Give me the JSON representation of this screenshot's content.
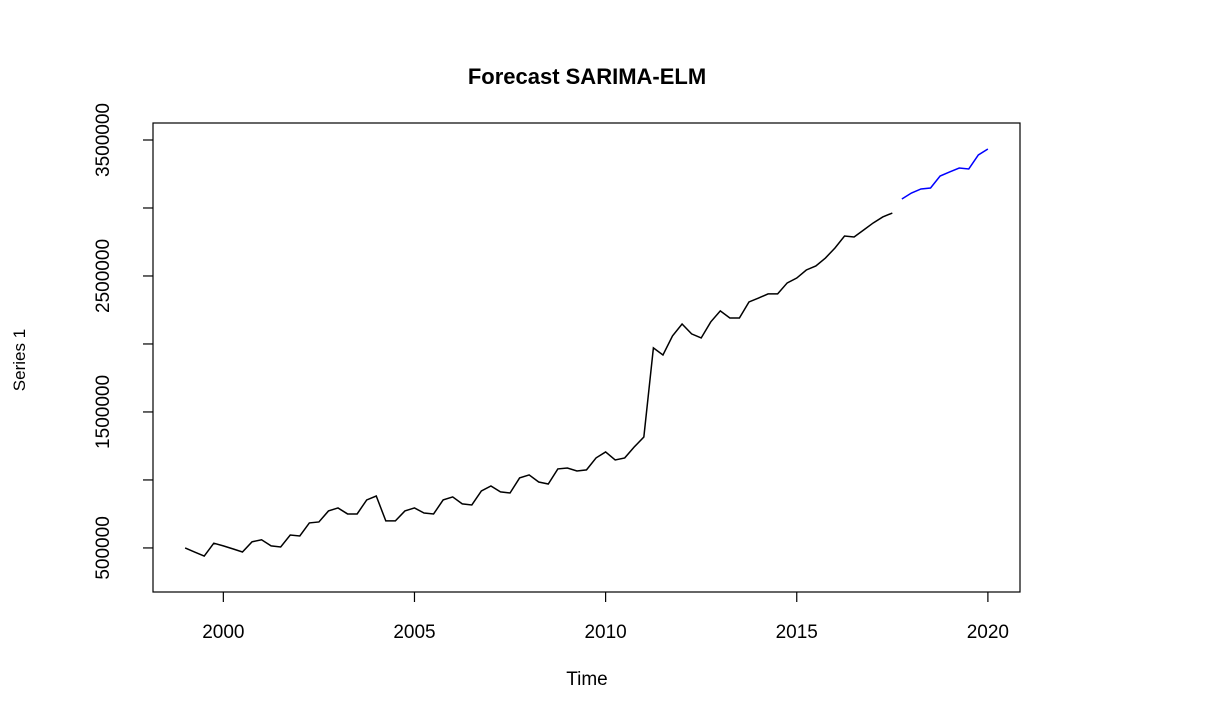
{
  "chart_data": {
    "type": "line",
    "title": "Forecast SARIMA-ELM",
    "xlabel": "Time",
    "ylabel": "Series 1",
    "xlim": [
      1998.16,
      2020.84
    ],
    "ylim": [
      176000,
      3625000
    ],
    "xticks": [
      2000,
      2005,
      2010,
      2015,
      2020
    ],
    "yticks": [
      500000,
      1000000,
      1500000,
      2000000,
      2500000,
      3000000,
      3500000
    ],
    "series": [
      {
        "color": "#000000",
        "x": [
          1999,
          1999.25,
          1999.5,
          1999.75,
          2000,
          2000.25,
          2000.5,
          2000.75,
          2001,
          2001.25,
          2001.5,
          2001.75,
          2002,
          2002.25,
          2002.5,
          2002.75,
          2003,
          2003.25,
          2003.5,
          2003.75,
          2004,
          2004.25,
          2004.5,
          2004.75,
          2005,
          2005.25,
          2005.5,
          2005.75,
          2006,
          2006.25,
          2006.5,
          2006.75,
          2007,
          2007.25,
          2007.5,
          2007.75,
          2008,
          2008.25,
          2008.5,
          2008.75,
          2009,
          2009.25,
          2009.5,
          2009.75,
          2010,
          2010.25,
          2010.5,
          2010.75,
          2011,
          2011.25,
          2011.5,
          2011.75,
          2012,
          2012.25,
          2012.5,
          2012.75,
          2013,
          2013.25,
          2013.5,
          2013.75,
          2014,
          2014.25,
          2014.5,
          2014.75,
          2015,
          2015.25,
          2015.5,
          2015.75,
          2016,
          2016.25,
          2016.5,
          2016.75,
          2017,
          2017.25,
          2017.5
        ],
        "values": [
          500000,
          470000,
          440000,
          535000,
          515000,
          493000,
          470000,
          545000,
          560000,
          515000,
          507000,
          595000,
          588000,
          684000,
          691000,
          772000,
          794000,
          750000,
          750000,
          853000,
          882000,
          699000,
          699000,
          772000,
          794000,
          757000,
          750000,
          853000,
          875000,
          824000,
          816000,
          919000,
          956000,
          912000,
          904000,
          1015000,
          1037000,
          985000,
          970000,
          1081000,
          1088000,
          1066000,
          1074000,
          1162000,
          1206000,
          1147000,
          1162000,
          1243000,
          1316000,
          1971000,
          1919000,
          2059000,
          2147000,
          2074000,
          2044000,
          2162000,
          2243000,
          2191000,
          2191000,
          2309000,
          2338000,
          2368000,
          2368000,
          2449000,
          2485000,
          2544000,
          2574000,
          2632000,
          2706000,
          2794000,
          2787000,
          2838000,
          2890000,
          2934000,
          2963000
        ]
      },
      {
        "color": "#0000ff",
        "x": [
          2017.75,
          2018,
          2018.25,
          2018.5,
          2018.75,
          2019,
          2019.25,
          2019.5,
          2019.75,
          2020
        ],
        "values": [
          3066000,
          3110000,
          3140000,
          3147000,
          3235000,
          3265000,
          3294000,
          3287000,
          3390000,
          3434000
        ]
      }
    ]
  }
}
